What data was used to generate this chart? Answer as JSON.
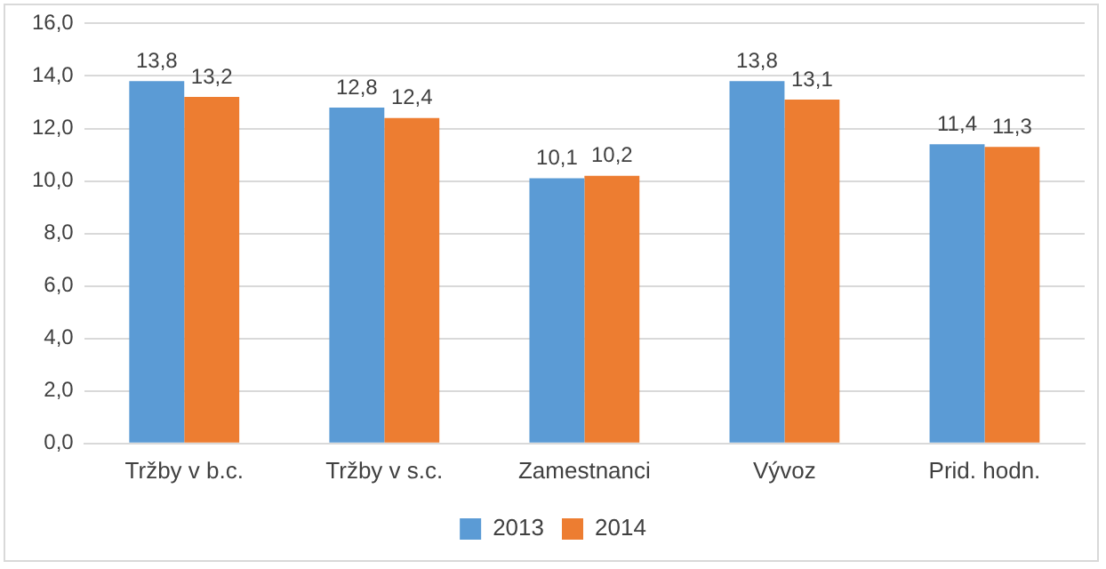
{
  "chart_data": {
    "type": "bar",
    "categories": [
      "Tržby v b.c.",
      "Tržby v s.c.",
      "Zamestnanci",
      "Vývoz",
      "Prid. hodn."
    ],
    "series": [
      {
        "name": "2013",
        "color": "#5b9bd5",
        "values": [
          13.8,
          12.8,
          10.1,
          13.8,
          11.4
        ],
        "value_labels": [
          "13,8",
          "12,8",
          "10,1",
          "13,8",
          "11,4"
        ]
      },
      {
        "name": "2014",
        "color": "#ed7d31",
        "values": [
          13.2,
          12.4,
          10.2,
          13.1,
          11.3
        ],
        "value_labels": [
          "13,2",
          "12,4",
          "10,2",
          "13,1",
          "11,3"
        ]
      }
    ],
    "ylim": [
      0,
      16
    ],
    "yticks": [
      {
        "value": 0,
        "label": "0,0"
      },
      {
        "value": 2,
        "label": "2,0"
      },
      {
        "value": 4,
        "label": "4,0"
      },
      {
        "value": 6,
        "label": "6,0"
      },
      {
        "value": 8,
        "label": "8,0"
      },
      {
        "value": 10,
        "label": "10,0"
      },
      {
        "value": 12,
        "label": "12,0"
      },
      {
        "value": 14,
        "label": "14,0"
      },
      {
        "value": 16,
        "label": "16,0"
      }
    ],
    "grid": "y",
    "legend": "bottom"
  }
}
